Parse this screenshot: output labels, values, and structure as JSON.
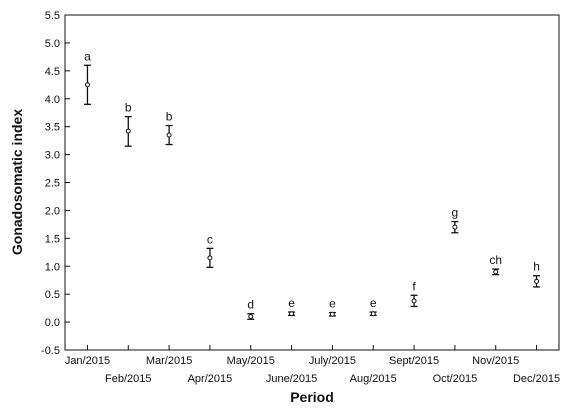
{
  "chart_data": {
    "type": "scatter",
    "xlabel": "Period",
    "ylabel": "Gonadosomatic index",
    "ylim": [
      -0.5,
      5.5
    ],
    "yticks": [
      "-0.5",
      "0.0",
      "0.5",
      "1.0",
      "1.5",
      "2.0",
      "2.5",
      "3.0",
      "3.5",
      "4.0",
      "4.5",
      "5.0",
      "5.5"
    ],
    "categories": [
      "Jan/2015",
      "Feb/2015",
      "Mar/2015",
      "Apr/2015",
      "May/2015",
      "June/2015",
      "July/2015",
      "Aug/2015",
      "Sept/2015",
      "Oct/2015",
      "Nov/2015",
      "Dec/2015"
    ],
    "series": [
      {
        "mean": [
          4.25,
          3.42,
          3.35,
          1.15,
          0.1,
          0.15,
          0.14,
          0.15,
          0.38,
          1.7,
          0.9,
          0.73
        ],
        "lower": [
          3.9,
          3.15,
          3.18,
          0.98,
          0.05,
          0.12,
          0.11,
          0.12,
          0.28,
          1.6,
          0.85,
          0.63
        ],
        "upper": [
          4.6,
          3.68,
          3.52,
          1.32,
          0.15,
          0.18,
          0.17,
          0.18,
          0.48,
          1.8,
          0.95,
          0.83
        ],
        "labels": [
          "a",
          "b",
          "b",
          "c",
          "d",
          "e",
          "e",
          "e",
          "f",
          "g",
          "ch",
          "h"
        ]
      }
    ],
    "grid": false,
    "legend": "none",
    "colors": {
      "marker": "#111111",
      "axis": "#111111"
    }
  }
}
